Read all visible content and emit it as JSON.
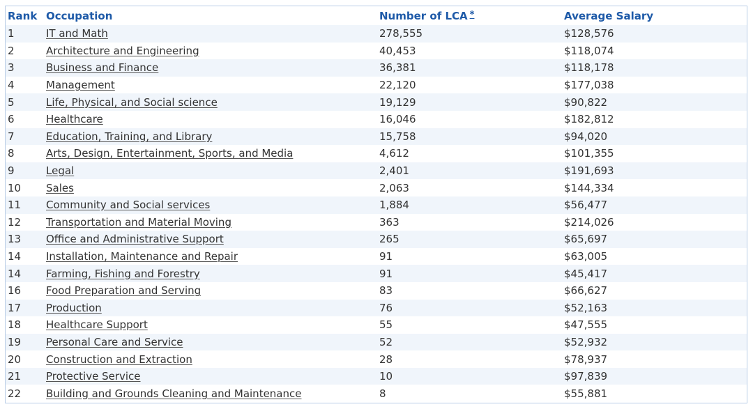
{
  "table": {
    "headers": {
      "rank": "Rank",
      "occupation": "Occupation",
      "lca": "Number of LCA",
      "lca_footnote": "*",
      "salary": "Average Salary"
    },
    "rows": [
      {
        "rank": "1",
        "occupation": "IT and Math",
        "lca": "278,555",
        "salary": "$128,576"
      },
      {
        "rank": "2",
        "occupation": "Architecture and Engineering",
        "lca": "40,453",
        "salary": "$118,074"
      },
      {
        "rank": "3",
        "occupation": "Business and Finance",
        "lca": "36,381",
        "salary": "$118,178"
      },
      {
        "rank": "4",
        "occupation": "Management",
        "lca": "22,120",
        "salary": "$177,038"
      },
      {
        "rank": "5",
        "occupation": "Life, Physical, and Social science",
        "lca": "19,129",
        "salary": "$90,822"
      },
      {
        "rank": "6",
        "occupation": "Healthcare",
        "lca": "16,046",
        "salary": "$182,812"
      },
      {
        "rank": "7",
        "occupation": "Education, Training, and Library",
        "lca": "15,758",
        "salary": "$94,020"
      },
      {
        "rank": "8",
        "occupation": "Arts, Design, Entertainment, Sports, and Media",
        "lca": "4,612",
        "salary": "$101,355"
      },
      {
        "rank": "9",
        "occupation": "Legal",
        "lca": "2,401",
        "salary": "$191,693"
      },
      {
        "rank": "10",
        "occupation": "Sales",
        "lca": "2,063",
        "salary": "$144,334"
      },
      {
        "rank": "11",
        "occupation": "Community and Social services",
        "lca": "1,884",
        "salary": "$56,477"
      },
      {
        "rank": "12",
        "occupation": "Transportation and Material Moving",
        "lca": "363",
        "salary": "$214,026"
      },
      {
        "rank": "13",
        "occupation": "Office and Administrative Support",
        "lca": "265",
        "salary": "$65,697"
      },
      {
        "rank": "14",
        "occupation": "Installation, Maintenance and Repair",
        "lca": "91",
        "salary": "$63,005"
      },
      {
        "rank": "14",
        "occupation": "Farming, Fishing and Forestry",
        "lca": "91",
        "salary": "$45,417"
      },
      {
        "rank": "16",
        "occupation": "Food Preparation and Serving",
        "lca": "83",
        "salary": "$66,627"
      },
      {
        "rank": "17",
        "occupation": "Production",
        "lca": "76",
        "salary": "$52,163"
      },
      {
        "rank": "18",
        "occupation": "Healthcare Support",
        "lca": "55",
        "salary": "$47,555"
      },
      {
        "rank": "19",
        "occupation": "Personal Care and Service",
        "lca": "52",
        "salary": "$52,932"
      },
      {
        "rank": "20",
        "occupation": "Construction and Extraction",
        "lca": "28",
        "salary": "$78,937"
      },
      {
        "rank": "21",
        "occupation": "Protective Service",
        "lca": "10",
        "salary": "$97,839"
      },
      {
        "rank": "22",
        "occupation": "Building and Grounds Cleaning and Maintenance",
        "lca": "8",
        "salary": "$55,881"
      }
    ]
  },
  "colors": {
    "header_text": "#1e5aa8",
    "row_stripe": "#f0f5fb",
    "border": "#b9cde6",
    "body_text": "#333333"
  }
}
